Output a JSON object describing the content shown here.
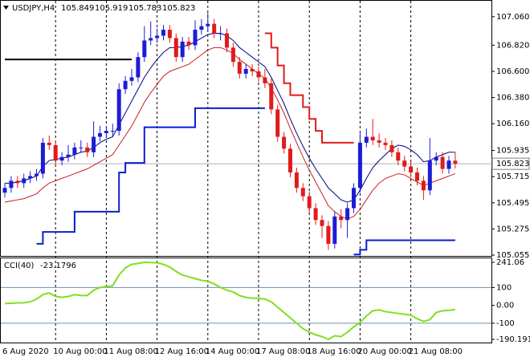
{
  "chart_data": [
    {
      "type": "candlestick",
      "title": "USDJPY,H4",
      "up_color": "#1c1cd6",
      "down_color": "#e01b1b",
      "open": [
        105.58,
        105.62,
        105.68,
        105.66,
        105.7,
        105.72,
        105.74,
        106.0,
        105.98,
        105.85,
        105.88,
        105.9,
        105.96,
        105.96,
        105.92,
        106.05,
        106.08,
        106.1,
        106.1,
        106.45,
        106.52,
        106.55,
        106.72,
        106.86,
        106.88,
        106.9,
        106.95,
        106.88,
        106.72,
        106.85,
        106.82,
        106.95,
        106.98,
        107.0,
        106.92,
        106.92,
        106.8,
        106.68,
        106.58,
        106.62,
        106.6,
        106.55,
        106.5,
        106.28,
        106.05,
        105.95,
        105.75,
        105.62,
        105.55,
        105.45,
        105.35,
        105.3,
        105.15,
        105.38,
        105.35,
        105.45,
        105.62,
        106.0,
        106.05,
        106.02,
        106.0,
        105.98,
        105.92,
        105.85,
        105.8,
        105.75,
        105.68,
        105.6,
        105.85,
        105.88,
        105.78,
        105.849
      ],
      "high": [
        105.66,
        105.72,
        105.72,
        105.74,
        105.76,
        105.78,
        106.04,
        106.06,
        106.02,
        105.92,
        105.98,
        106.0,
        106.02,
        106.0,
        106.18,
        106.14,
        106.14,
        106.16,
        106.5,
        106.56,
        106.62,
        106.76,
        106.98,
        107.02,
        106.96,
        106.99,
        106.99,
        106.92,
        106.89,
        106.89,
        107.03,
        107.04,
        107.09,
        107.04,
        106.98,
        106.96,
        106.84,
        106.72,
        106.66,
        106.66,
        106.64,
        106.62,
        106.54,
        106.32,
        106.09,
        105.99,
        105.79,
        105.66,
        105.59,
        105.49,
        105.39,
        105.34,
        105.42,
        105.44,
        105.49,
        105.66,
        106.08,
        106.12,
        106.2,
        106.08,
        106.04,
        106.02,
        105.96,
        105.89,
        105.84,
        105.79,
        105.72,
        106.04,
        105.92,
        105.92,
        105.89,
        105.919
      ],
      "low": [
        105.54,
        105.58,
        105.62,
        105.62,
        105.66,
        105.68,
        105.7,
        105.94,
        105.81,
        105.81,
        105.84,
        105.86,
        105.92,
        105.88,
        105.88,
        106.01,
        106.04,
        106.05,
        106.06,
        106.41,
        106.48,
        106.51,
        106.68,
        106.82,
        106.84,
        106.86,
        106.84,
        106.68,
        106.68,
        106.78,
        106.78,
        106.91,
        106.94,
        106.88,
        106.86,
        106.76,
        106.64,
        106.54,
        106.54,
        106.56,
        106.51,
        106.46,
        106.24,
        106.01,
        105.91,
        105.71,
        105.58,
        105.51,
        105.41,
        105.31,
        105.2,
        105.1,
        105.11,
        105.28,
        105.2,
        105.41,
        105.58,
        105.96,
        105.98,
        105.96,
        105.94,
        105.88,
        105.81,
        105.76,
        105.71,
        105.64,
        105.52,
        105.56,
        105.81,
        105.74,
        105.74,
        105.783
      ],
      "close": [
        105.62,
        105.68,
        105.66,
        105.7,
        105.72,
        105.74,
        106.0,
        105.98,
        105.85,
        105.88,
        105.9,
        105.96,
        105.96,
        105.92,
        106.05,
        106.08,
        106.1,
        106.1,
        106.45,
        106.52,
        106.55,
        106.72,
        106.86,
        106.88,
        106.9,
        106.95,
        106.88,
        106.72,
        106.85,
        106.82,
        106.95,
        106.98,
        107.0,
        106.92,
        106.92,
        106.8,
        106.68,
        106.58,
        106.62,
        106.6,
        106.55,
        106.5,
        106.28,
        106.05,
        105.95,
        105.75,
        105.62,
        105.55,
        105.45,
        105.35,
        105.3,
        105.15,
        105.38,
        105.35,
        105.45,
        105.62,
        106.0,
        106.05,
        106.02,
        106.0,
        105.98,
        105.92,
        105.85,
        105.8,
        105.75,
        105.68,
        105.6,
        105.85,
        105.88,
        105.78,
        105.85,
        105.823
      ],
      "overlays": [
        {
          "color": "#000080",
          "step": false,
          "values": [
            105.66,
            105.66,
            105.67,
            105.68,
            105.7,
            105.72,
            105.8,
            105.85,
            105.86,
            105.87,
            105.88,
            105.9,
            105.92,
            105.93,
            105.96,
            106.0,
            106.03,
            106.05,
            106.15,
            106.25,
            106.35,
            106.45,
            106.55,
            106.63,
            106.7,
            106.76,
            106.8,
            106.8,
            106.81,
            106.82,
            106.85,
            106.88,
            106.91,
            106.92,
            106.92,
            106.9,
            106.86,
            106.8,
            106.76,
            106.72,
            106.68,
            106.64,
            106.55,
            106.44,
            106.33,
            106.2,
            106.08,
            105.97,
            105.87,
            105.78,
            105.7,
            105.62,
            105.57,
            105.52,
            105.5,
            105.52,
            105.6,
            105.7,
            105.79,
            105.85,
            105.9,
            105.95,
            105.98,
            105.97,
            105.94,
            105.9,
            105.84,
            105.85,
            105.88,
            105.9,
            105.92,
            105.92
          ]
        },
        {
          "color": "#c81e1e",
          "step": false,
          "values": [
            105.5,
            105.51,
            105.52,
            105.53,
            105.55,
            105.57,
            105.62,
            105.66,
            105.68,
            105.7,
            105.72,
            105.74,
            105.76,
            105.78,
            105.81,
            105.84,
            105.87,
            105.9,
            105.98,
            106.06,
            106.14,
            106.24,
            106.34,
            106.42,
            106.49,
            106.56,
            106.6,
            106.62,
            106.64,
            106.66,
            106.7,
            106.74,
            106.78,
            106.8,
            106.8,
            106.78,
            106.75,
            106.7,
            106.66,
            106.62,
            106.58,
            106.54,
            106.46,
            106.36,
            106.25,
            106.12,
            106.0,
            105.88,
            105.77,
            105.67,
            105.57,
            105.47,
            105.42,
            105.38,
            105.36,
            105.38,
            105.44,
            105.52,
            105.6,
            105.66,
            105.7,
            105.72,
            105.74,
            105.73,
            105.7,
            105.67,
            105.64,
            105.66,
            105.68,
            105.7,
            105.72,
            105.74
          ]
        },
        {
          "color": "#0a1ed2",
          "step": true,
          "values": [
            null,
            null,
            null,
            null,
            null,
            105.15,
            105.25,
            105.25,
            105.25,
            105.25,
            105.25,
            105.42,
            105.42,
            105.42,
            105.42,
            105.42,
            105.42,
            105.42,
            105.75,
            105.83,
            105.83,
            105.83,
            106.13,
            106.13,
            106.13,
            106.13,
            106.13,
            106.13,
            106.13,
            106.13,
            106.29,
            106.29,
            106.29,
            106.29,
            106.29,
            106.29,
            106.29,
            106.29,
            106.29,
            106.29,
            106.29,
            106.29,
            null,
            null,
            null,
            null,
            null,
            null,
            null,
            null,
            null,
            null,
            null,
            null,
            null,
            105.06,
            105.1,
            105.18,
            105.18,
            105.18,
            105.18,
            105.18,
            105.18,
            105.18,
            105.18,
            105.18,
            105.18,
            105.18,
            105.18,
            105.18,
            105.18,
            105.18
          ]
        },
        {
          "color": "#e01b1b",
          "step": true,
          "values": [
            null,
            null,
            null,
            null,
            null,
            null,
            null,
            null,
            null,
            null,
            null,
            null,
            null,
            null,
            null,
            null,
            null,
            null,
            null,
            null,
            null,
            null,
            null,
            null,
            null,
            null,
            null,
            null,
            null,
            null,
            null,
            null,
            null,
            null,
            null,
            null,
            null,
            null,
            null,
            null,
            null,
            106.92,
            106.8,
            106.65,
            106.5,
            106.4,
            106.4,
            106.3,
            106.2,
            106.1,
            106.0,
            106.0,
            106.0,
            106.0,
            106.0,
            106.0,
            null,
            null,
            null,
            null,
            null,
            null,
            null,
            null,
            null,
            null,
            null,
            null,
            null,
            null,
            null,
            null
          ]
        },
        {
          "color": "#000000",
          "step": true,
          "values": [
            106.7,
            106.7,
            106.7,
            106.7,
            106.7,
            106.7,
            106.7,
            106.7,
            106.7,
            106.7,
            106.7,
            106.7,
            106.7,
            106.7,
            106.7,
            106.7,
            106.7,
            106.7,
            106.7,
            106.7,
            106.7,
            null,
            null,
            null,
            null,
            null,
            null,
            null,
            null,
            null,
            null,
            null,
            null,
            null,
            null,
            null,
            null,
            null,
            null,
            null,
            null,
            null,
            null,
            null,
            null,
            null,
            null,
            null,
            null,
            null,
            null,
            null,
            null,
            null,
            null,
            null,
            null,
            null,
            null,
            null,
            null,
            null,
            null,
            null,
            null,
            null,
            null,
            null,
            null,
            null,
            null,
            null
          ]
        }
      ],
      "ylim": [
        105.055,
        107.18
      ],
      "yticks": [
        {
          "value": 107.06,
          "label": "107.060"
        },
        {
          "value": 106.82,
          "label": "106.820"
        },
        {
          "value": 106.6,
          "label": "106.600"
        },
        {
          "value": 106.38,
          "label": "106.380"
        },
        {
          "value": 106.16,
          "label": "106.160"
        },
        105.935,
        105.715,
        105.495,
        105.275,
        105.055
      ],
      "xticks": [
        {
          "value": 0,
          "label": "6 Aug 2020"
        },
        {
          "value": 8,
          "label": "10 Aug 00:00"
        },
        {
          "value": 16,
          "label": "11 Aug 08:00"
        },
        {
          "value": 24,
          "label": "12 Aug 16:00"
        },
        {
          "value": 32,
          "label": "14 Aug 00:00"
        },
        {
          "value": 40,
          "label": "17 Aug 08:00"
        },
        {
          "value": 48,
          "label": "18 Aug 16:00"
        },
        {
          "value": 56,
          "label": "20 Aug 00:00"
        },
        {
          "value": 64,
          "label": "21 Aug 08:00"
        }
      ]
    },
    {
      "type": "line",
      "title": "CCI(40)",
      "color": "#7fe01e",
      "values": [
        10,
        12,
        14,
        15,
        20,
        35,
        60,
        70,
        50,
        45,
        50,
        60,
        55,
        55,
        85,
        100,
        105,
        110,
        170,
        210,
        230,
        235,
        241.06,
        240,
        238,
        230,
        215,
        190,
        170,
        160,
        150,
        140,
        135,
        120,
        100,
        85,
        75,
        55,
        45,
        40,
        40,
        35,
        20,
        -10,
        -40,
        -70,
        -100,
        -130,
        -150,
        -165,
        -175,
        -190.1918,
        -170,
        -175,
        -150,
        -120,
        -95,
        -60,
        -30,
        -25,
        -35,
        -40,
        -45,
        -50,
        -55,
        -75,
        -90,
        -80,
        -40,
        -30,
        -28,
        -23.1796
      ],
      "ylim": [
        -190.1918,
        241.06
      ],
      "yticks": [
        241.06,
        100,
        {
          "value": 0,
          "label": "0.00"
        },
        -100,
        -190.1918
      ],
      "grid": true,
      "grid_color": "#6f8faf"
    }
  ]
}
